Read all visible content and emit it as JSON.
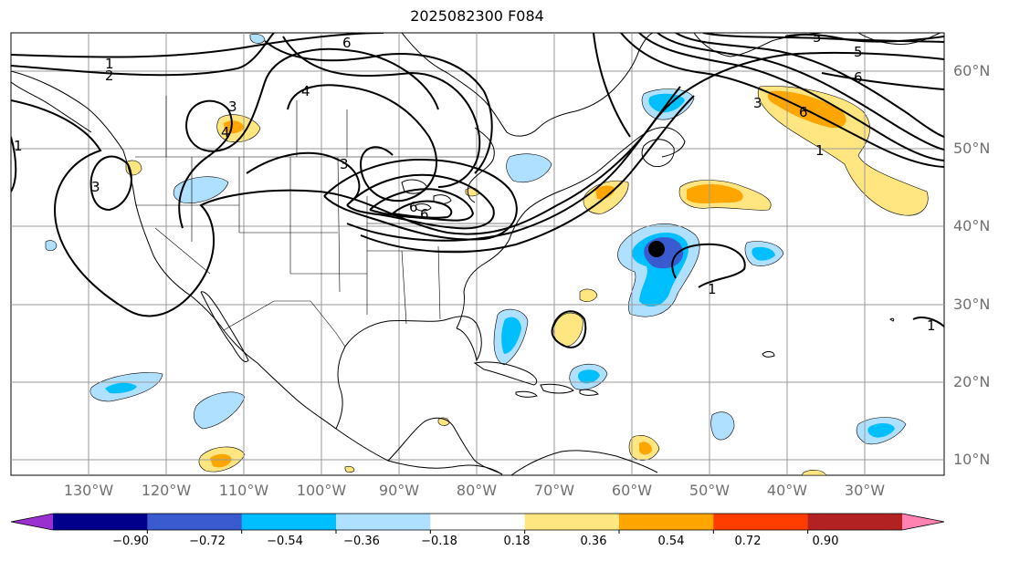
{
  "title": "2025082300 F084",
  "lon_labels": [
    "130°W",
    "120°W",
    "110°W",
    "100°W",
    "90°W",
    "80°W",
    "70°W",
    "60°W",
    "50°W",
    "40°W",
    "30°W"
  ],
  "lat_labels": [
    "60°N",
    "50°N",
    "40°N",
    "30°N",
    "20°N",
    "10°N"
  ],
  "colorbar": {
    "ticks": [
      "−0.90",
      "−0.72",
      "−0.54",
      "−0.36",
      "−0.18",
      "0.18",
      "0.36",
      "0.54",
      "0.72",
      "0.90"
    ],
    "colors": [
      "#9b30d0",
      "#00008b",
      "#3a5bd0",
      "#00bfff",
      "#b0e0ff",
      "#ffffff",
      "#ffe680",
      "#ffa500",
      "#ff3d00",
      "#b22222",
      "#ff82b0"
    ]
  },
  "contour_labels": [
    "1",
    "2",
    "3",
    "4",
    "5",
    "6",
    "6",
    "5",
    "6",
    "3",
    "6",
    "1",
    "1",
    "1",
    "1",
    "3",
    "3",
    "4",
    "6"
  ],
  "marker": "storm-center-dot"
}
